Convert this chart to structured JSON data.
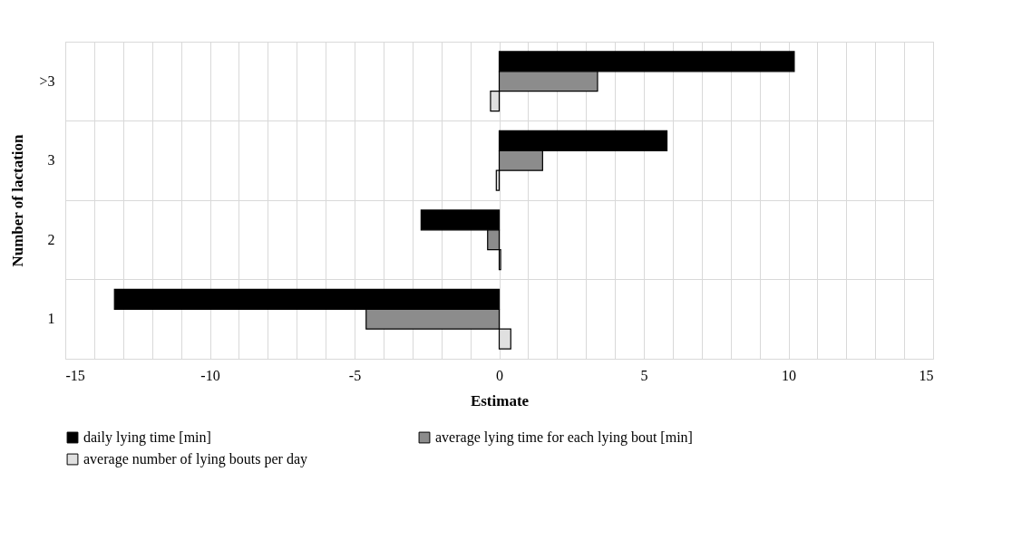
{
  "chart_data": {
    "type": "bar",
    "orientation": "horizontal",
    "xlabel": "Estimate",
    "ylabel": "Number of lactation",
    "categories": [
      ">3",
      "3",
      "2",
      "1"
    ],
    "series": [
      {
        "name": "daily lying time [min]",
        "color": "#000000",
        "values": [
          10.2,
          5.8,
          -2.7,
          -13.3
        ]
      },
      {
        "name": "average lying time for each lying bout [min]",
        "color": "#8c8c8c",
        "values": [
          3.4,
          1.5,
          -0.4,
          -4.6
        ]
      },
      {
        "name": "average number of lying bouts per day",
        "color": "#e0e0e0",
        "values": [
          -0.3,
          -0.1,
          0.05,
          0.4
        ]
      }
    ],
    "xlim": [
      -15,
      15
    ],
    "xticks": [
      -15,
      {
        "value": -14,
        "label": null
      },
      {
        "value": -13,
        "label": null
      },
      {
        "value": -12,
        "label": null
      },
      {
        "value": -11,
        "label": null
      },
      -10,
      {
        "value": -9,
        "label": null
      },
      {
        "value": -8,
        "label": null
      },
      {
        "value": -7,
        "label": null
      },
      {
        "value": -6,
        "label": null
      },
      -5,
      {
        "value": -4,
        "label": null
      },
      {
        "value": -3,
        "label": null
      },
      {
        "value": -2,
        "label": null
      },
      {
        "value": -1,
        "label": null
      },
      0,
      {
        "value": 1,
        "label": null
      },
      {
        "value": 2,
        "label": null
      },
      {
        "value": 3,
        "label": null
      },
      {
        "value": 4,
        "label": null
      },
      5,
      {
        "value": 6,
        "label": null
      },
      {
        "value": 7,
        "label": null
      },
      {
        "value": 8,
        "label": null
      },
      {
        "value": 9,
        "label": null
      },
      10,
      {
        "value": 11,
        "label": null
      },
      {
        "value": 12,
        "label": null
      },
      {
        "value": 13,
        "label": null
      },
      {
        "value": 14,
        "label": null
      },
      15
    ],
    "grid": true,
    "legend": "bottom"
  }
}
